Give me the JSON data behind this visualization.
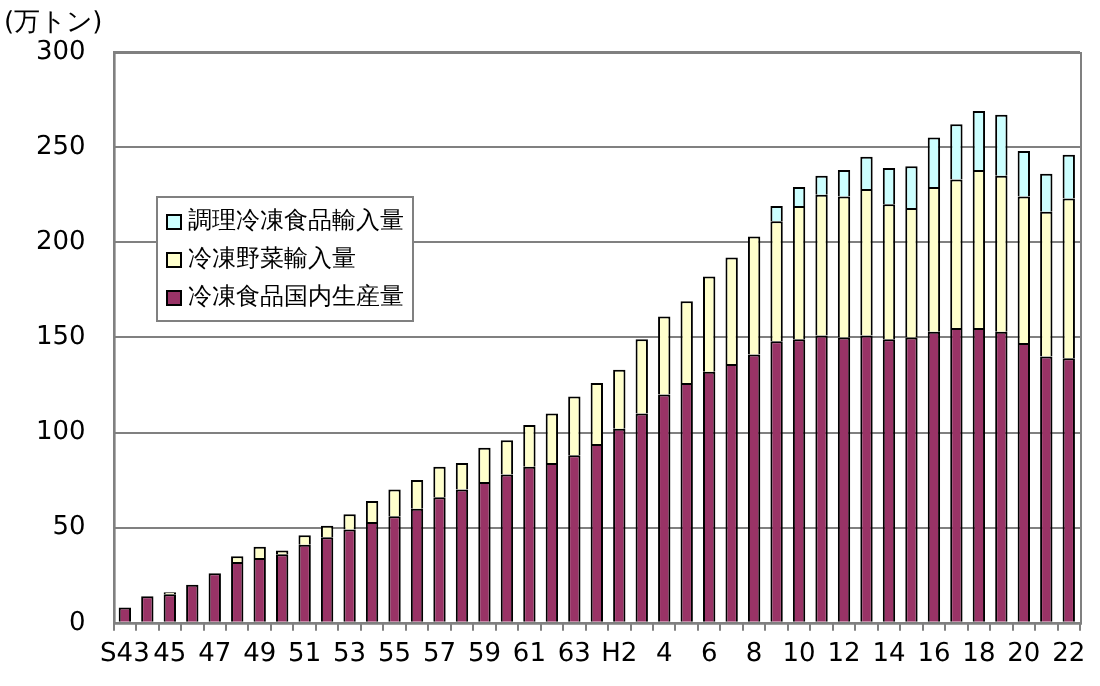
{
  "chart_data": {
    "type": "bar",
    "ylabel": "(万トン)",
    "stacked": true,
    "grid": "y",
    "legend": "left",
    "categories": [
      "S43",
      null,
      "45",
      null,
      "47",
      null,
      "49",
      null,
      "51",
      null,
      "53",
      null,
      "55",
      null,
      "57",
      null,
      "59",
      null,
      "61",
      null,
      "63",
      null,
      "H2",
      null,
      "4",
      null,
      "6",
      null,
      "8",
      null,
      "10",
      null,
      "12",
      null,
      "14",
      null,
      "16",
      null,
      "18",
      null,
      "20",
      null,
      "22"
    ],
    "ylim": [
      0,
      300
    ],
    "yticks": [
      0,
      50,
      100,
      150,
      200,
      250,
      300
    ],
    "series": [
      {
        "name": "冷凍食品国内生産量",
        "color": "#993366",
        "values": [
          8,
          14,
          15,
          20,
          26,
          32,
          34,
          36,
          41,
          45,
          49,
          53,
          56,
          60,
          66,
          70,
          74,
          78,
          82,
          84,
          88,
          94,
          102,
          110,
          120,
          126,
          132,
          136,
          141,
          148,
          149,
          151,
          150,
          151,
          149,
          150,
          153,
          155,
          155,
          153,
          147,
          140,
          139
        ]
      },
      {
        "name": "冷凍野菜輸入量",
        "color": "#ffffcc",
        "values": [
          0,
          0,
          1,
          0,
          0,
          3,
          6,
          2,
          5,
          6,
          8,
          11,
          14,
          15,
          16,
          14,
          18,
          18,
          22,
          26,
          31,
          32,
          31,
          39,
          41,
          43,
          50,
          56,
          62,
          63,
          70,
          74,
          74,
          77,
          71,
          68,
          76,
          78,
          83,
          82,
          77,
          76,
          84
        ]
      },
      {
        "name": "調理冷凍食品輸入量",
        "color": "#ccffff",
        "values": [
          0,
          0,
          0,
          0,
          0,
          0,
          0,
          0,
          0,
          0,
          0,
          0,
          0,
          0,
          0,
          0,
          0,
          0,
          0,
          0,
          0,
          0,
          0,
          0,
          0,
          0,
          0,
          0,
          0,
          8,
          10,
          10,
          14,
          17,
          19,
          22,
          26,
          29,
          31,
          32,
          24,
          20,
          23
        ]
      }
    ]
  }
}
